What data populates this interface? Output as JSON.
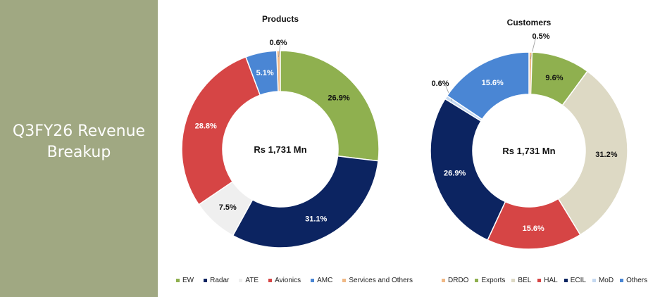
{
  "side_panel": {
    "title_line1": "Q3FY26 Revenue",
    "title_line2": "Breakup"
  },
  "chart_data": [
    {
      "type": "pie",
      "variant": "donut",
      "title": "Products",
      "center_label": "Rs 1,731 Mn",
      "categories": [
        "EW",
        "Radar",
        "ATE",
        "Avionics",
        "AMC",
        "Services and Others"
      ],
      "values": [
        26.9,
        31.1,
        7.5,
        28.8,
        5.1,
        0.6
      ],
      "labels": [
        "26.9%",
        "31.1%",
        "7.5%",
        "28.8%",
        "5.1%",
        "0.6%"
      ],
      "colors": [
        "#8fb04f",
        "#0c2461",
        "#efefef",
        "#d64545",
        "#4a86d4",
        "#f0b986"
      ],
      "label_colors": [
        "#111111",
        "#ffffff",
        "#111111",
        "#ffffff",
        "#ffffff",
        "#111111"
      ],
      "legend_order": [
        "EW",
        "Radar",
        "ATE",
        "Avionics",
        "AMC",
        "Services and Others"
      ],
      "legend": "bottom"
    },
    {
      "type": "pie",
      "variant": "donut",
      "title": "Customers",
      "center_label": "Rs 1,731 Mn",
      "categories": [
        "DRDO",
        "Exports",
        "BEL",
        "HAL",
        "ECIL",
        "MoD",
        "Others"
      ],
      "values": [
        0.5,
        9.6,
        31.2,
        15.6,
        26.9,
        0.6,
        15.6
      ],
      "labels": [
        "0.5%",
        "9.6%",
        "31.2%",
        "15.6%",
        "26.9%",
        "0.6%",
        "15.6%"
      ],
      "colors": [
        "#f0b986",
        "#8fb04f",
        "#ddd9c4",
        "#d64545",
        "#0c2461",
        "#c5d9f1",
        "#4a86d4"
      ],
      "label_colors": [
        "#111111",
        "#111111",
        "#111111",
        "#ffffff",
        "#ffffff",
        "#111111",
        "#ffffff"
      ],
      "legend_order": [
        "DRDO",
        "Exports",
        "BEL",
        "HAL",
        "ECIL",
        "MoD",
        "Others"
      ],
      "legend": "bottom"
    }
  ]
}
